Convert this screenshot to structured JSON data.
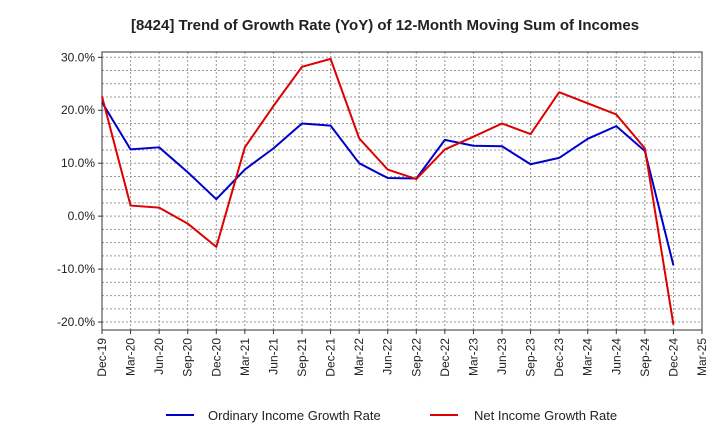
{
  "chart_data": {
    "type": "line",
    "title": "[8424]  Trend of Growth Rate (YoY) of 12-Month Moving Sum of Incomes",
    "xlabel": "",
    "ylabel": "",
    "categories": [
      "Dec-19",
      "Mar-20",
      "Jun-20",
      "Sep-20",
      "Dec-20",
      "Mar-21",
      "Jun-21",
      "Sep-21",
      "Dec-21",
      "Mar-22",
      "Jun-22",
      "Sep-22",
      "Dec-22",
      "Mar-23",
      "Jun-23",
      "Sep-23",
      "Dec-23",
      "Mar-24",
      "Jun-24",
      "Sep-24",
      "Dec-24",
      "Mar-25"
    ],
    "y_ticks": [
      "30.0%",
      "20.0%",
      "10.0%",
      "0.0%",
      "-10.0%",
      "-20.0%"
    ],
    "ylim": [
      -21.5,
      31.0
    ],
    "y_tick_values": [
      30,
      20,
      10,
      0,
      -10,
      -20
    ],
    "grid": true,
    "legend_position": "bottom",
    "series": [
      {
        "name": "Ordinary Income Growth Rate",
        "color": "#0000cc",
        "values": [
          21.5,
          12.6,
          13.0,
          8.3,
          3.2,
          8.8,
          12.8,
          17.5,
          17.1,
          10.0,
          7.2,
          7.1,
          14.4,
          13.3,
          13.2,
          9.8,
          11.0,
          14.6,
          17.0,
          12.3,
          -9.3,
          null
        ]
      },
      {
        "name": "Net Income Growth Rate",
        "color": "#dd0000",
        "values": [
          22.6,
          2.0,
          1.6,
          -1.4,
          -5.8,
          13.0,
          20.8,
          28.2,
          29.7,
          14.7,
          8.8,
          7.0,
          12.6,
          15.0,
          17.5,
          15.5,
          23.4,
          21.3,
          19.2,
          12.8,
          -20.5,
          null
        ]
      }
    ]
  }
}
